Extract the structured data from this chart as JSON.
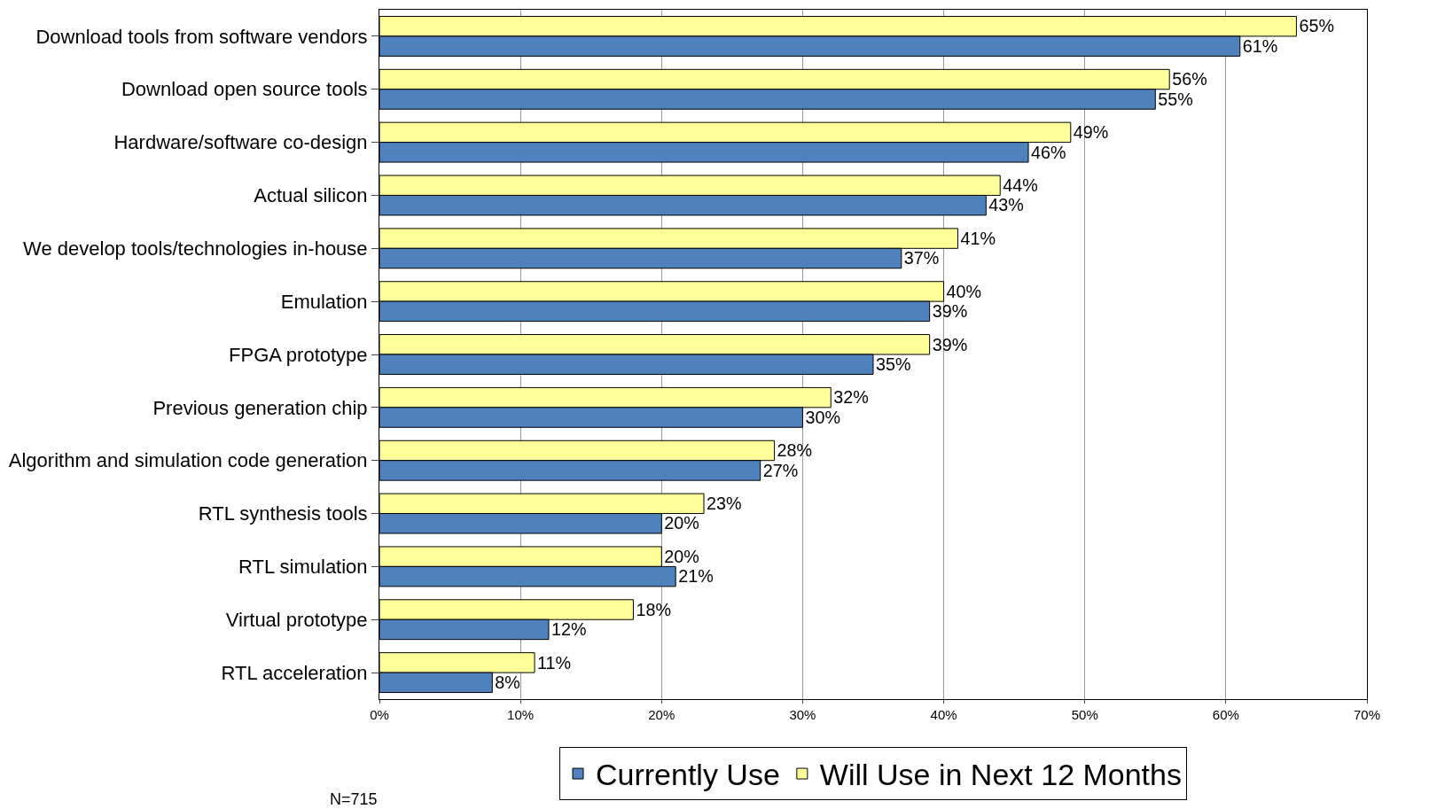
{
  "chart_data": {
    "type": "bar",
    "orientation": "horizontal",
    "categories": [
      "Download tools from software vendors",
      "Download open source tools",
      "Hardware/software co-design",
      "Actual silicon",
      "We develop tools/technologies in-house",
      "Emulation",
      "FPGA prototype",
      "Previous generation chip",
      "Algorithm and simulation code generation",
      "RTL synthesis tools",
      "RTL simulation",
      "Virtual prototype",
      "RTL acceleration"
    ],
    "series": [
      {
        "name": "Currently Use",
        "color": "#4f81bd",
        "values": [
          61,
          55,
          46,
          43,
          37,
          39,
          35,
          30,
          27,
          20,
          21,
          12,
          8
        ],
        "value_labels": [
          "61%",
          "55%",
          "46%",
          "43%",
          "37%",
          "39%",
          "35%",
          "30%",
          "27%",
          "20%",
          "21%",
          "12%",
          "8%"
        ]
      },
      {
        "name": "Will Use in Next 12 Months",
        "color": "#ffff99",
        "values": [
          65,
          56,
          49,
          44,
          41,
          40,
          39,
          32,
          28,
          23,
          20,
          18,
          11
        ],
        "value_labels": [
          "65%",
          "56%",
          "49%",
          "44%",
          "41%",
          "40%",
          "39%",
          "32%",
          "28%",
          "23%",
          "20%",
          "18%",
          "11%"
        ]
      }
    ],
    "xlim": [
      0,
      70
    ],
    "xticks": [
      {
        "value": 0,
        "label": "0%"
      },
      {
        "value": 10,
        "label": "10%"
      },
      {
        "value": 20,
        "label": "20%"
      },
      {
        "value": 30,
        "label": "30%"
      },
      {
        "value": 40,
        "label": "40%"
      },
      {
        "value": 50,
        "label": "50%"
      },
      {
        "value": 60,
        "label": "60%"
      },
      {
        "value": 70,
        "label": "70%"
      }
    ],
    "grid": "x",
    "legend": "bottom",
    "annotations": [
      "N=715"
    ]
  }
}
